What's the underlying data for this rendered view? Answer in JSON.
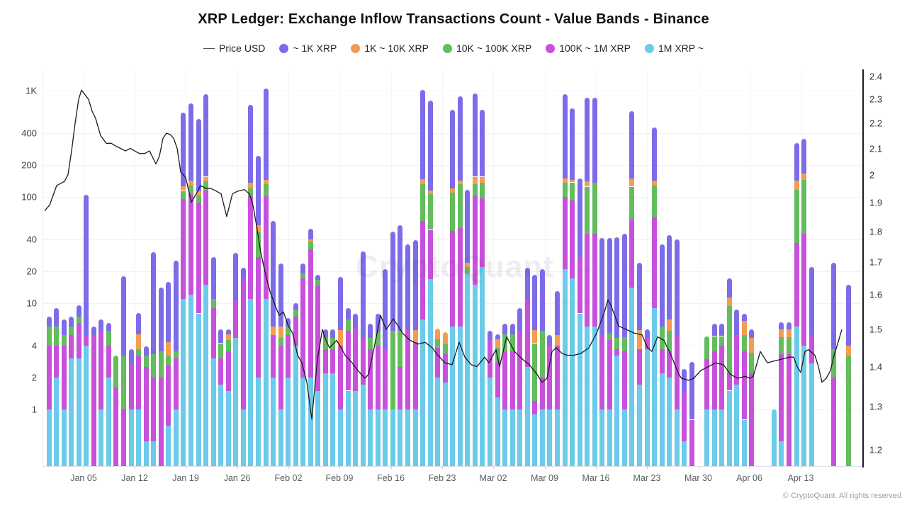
{
  "title": "XRP Ledger: Exchange Inflow Transactions Count - Value Bands - Binance",
  "watermark": "CryptoQuant",
  "footer": "© CryptoQuant. All rights reserved",
  "legend": {
    "price_label": "Price USD",
    "items": [
      {
        "label": "~ 1K XRP",
        "color": "#7d6ce9",
        "band": "purple"
      },
      {
        "label": "1K ~ 10K XRP",
        "color": "#f29a52",
        "band": "orange"
      },
      {
        "label": "10K ~ 100K XRP",
        "color": "#63bc5d",
        "band": "green"
      },
      {
        "label": "100K ~ 1M XRP",
        "color": "#c751da",
        "band": "magenta"
      },
      {
        "label": "1M XRP ~",
        "color": "#6bcbe8",
        "band": "cyan"
      }
    ]
  },
  "colors": {
    "purple": "#7d6ce9",
    "orange": "#f39d52",
    "green": "#63bc5d",
    "magenta": "#c751da",
    "cyan": "#6bcbe8",
    "price_line": "#1a1a1f",
    "grid": "#f1f1f6",
    "right_axis": "#1c1c22"
  },
  "chart_data": {
    "type": "bar",
    "stacked": true,
    "log_left_axis": true,
    "log_right_axis": true,
    "band_order_bottom_to_top": [
      "1M XRP ~",
      "100K ~ 1M XRP",
      "10K ~ 100K XRP",
      "1K ~ 10K XRP",
      "~ 1K XRP"
    ],
    "y_left_ticks": [
      1,
      2,
      4,
      10,
      20,
      40,
      100,
      200,
      400,
      1000
    ],
    "y_left_tick_labels": [
      "1",
      "2",
      "4",
      "10",
      "20",
      "40",
      "100",
      "200",
      "400",
      "1K"
    ],
    "y_right_ticks": [
      2.4,
      2.3,
      2.2,
      2.1,
      2,
      1.9,
      1.8,
      1.7,
      1.6,
      1.5,
      1.4,
      1.3,
      1.2
    ],
    "y_right_tick_labels": [
      "2.4",
      "2.3",
      "2.2",
      "2.1",
      "2",
      "1.9",
      "1.8",
      "1.7",
      "1.6",
      "1.5",
      "1.4",
      "1.3",
      "1.2"
    ],
    "x_ticks": [
      {
        "label": "Jan 05",
        "x": 118
      },
      {
        "label": "Jan 12",
        "x": 190
      },
      {
        "label": "Jan 19",
        "x": 262
      },
      {
        "label": "Jan 26",
        "x": 334.5
      },
      {
        "label": "Feb 02",
        "x": 407
      },
      {
        "label": "Feb 09",
        "x": 479
      },
      {
        "label": "Feb 16",
        "x": 551.5
      },
      {
        "label": "Feb 23",
        "x": 624
      },
      {
        "label": "Mar 02",
        "x": 696
      },
      {
        "label": "Mar 09",
        "x": 768.5
      },
      {
        "label": "Mar 16",
        "x": 841
      },
      {
        "label": "Mar 23",
        "x": 913
      },
      {
        "label": "Mar 30",
        "x": 985.5
      },
      {
        "label": "Apr 06",
        "x": 1057.5
      },
      {
        "label": "Apr 13",
        "x": 1130
      }
    ],
    "bars_note": "daily stacked counts [1M~, 100K-1M, 10K-100K, 1K-10K, ~1K], first bar = Jan 01",
    "bars": [
      [
        1,
        3,
        2,
        0,
        1.5
      ],
      [
        2,
        2,
        2,
        0,
        3
      ],
      [
        1,
        3,
        1,
        0,
        2
      ],
      [
        3,
        2,
        1,
        0,
        1.5
      ],
      [
        3,
        3.5,
        1,
        0,
        2
      ],
      [
        4,
        1,
        0,
        0,
        100
      ],
      [
        0,
        5,
        0,
        0,
        1
      ],
      [
        1,
        4.5,
        0,
        0,
        1.5
      ],
      [
        2,
        2,
        1.5,
        0,
        1
      ],
      [
        0,
        1.6,
        1.6,
        0,
        0
      ],
      [
        0,
        1,
        2.2,
        0,
        14.8
      ],
      [
        1,
        1.7,
        0,
        0,
        1
      ],
      [
        1,
        2.2,
        0.5,
        1.4,
        3
      ],
      [
        0.5,
        2,
        0.7,
        0,
        0.7
      ],
      [
        0.5,
        1.5,
        1.3,
        0,
        26.7
      ],
      [
        0,
        2,
        1.5,
        0,
        10.5
      ],
      [
        0.7,
        1.9,
        0.6,
        1.1,
        11.5
      ],
      [
        1,
        2,
        0.5,
        0,
        21.5
      ],
      [
        11,
        85,
        18,
        12,
        494
      ],
      [
        12,
        95,
        20,
        15,
        618
      ],
      [
        8,
        80,
        15,
        10,
        432
      ],
      [
        15,
        100,
        25,
        15,
        775
      ],
      [
        3,
        6,
        2,
        0,
        16
      ],
      [
        1.7,
        1.3,
        1.2,
        0,
        1.5
      ],
      [
        1.5,
        2,
        1,
        0.6,
        0.6
      ],
      [
        4.7,
        6,
        0,
        0,
        19
      ],
      [
        1,
        16,
        0,
        0,
        4.5
      ],
      [
        11,
        90,
        20,
        15,
        604
      ],
      [
        2,
        25,
        20,
        7,
        191
      ],
      [
        11,
        90,
        30,
        14,
        900
      ],
      [
        2,
        3,
        0,
        1,
        53
      ],
      [
        1,
        3,
        0.7,
        1.3,
        17.7
      ],
      [
        2,
        3,
        1,
        0,
        1.3
      ],
      [
        4,
        3.5,
        1.2,
        0,
        1.3
      ],
      [
        2,
        15,
        2,
        0,
        4.7
      ],
      [
        2,
        30,
        6,
        2,
        10
      ],
      [
        1.5,
        13,
        2,
        0,
        2
      ],
      [
        2.2,
        1.5,
        1,
        0,
        1
      ],
      [
        2.2,
        1.5,
        1,
        0,
        1
      ],
      [
        1,
        3,
        0,
        1.6,
        12
      ],
      [
        1.5,
        4,
        1.5,
        0,
        2
      ],
      [
        1.5,
        4.5,
        0,
        0,
        2
      ],
      [
        1.7,
        3,
        0,
        0,
        26
      ],
      [
        1,
        2.7,
        1,
        0,
        1.7
      ],
      [
        1,
        3,
        1.3,
        0,
        2.7
      ],
      [
        1,
        2.7,
        0,
        0,
        17.3
      ],
      [
        1,
        0,
        4.5,
        0,
        41.5
      ],
      [
        1,
        1.5,
        3,
        0,
        48.5
      ],
      [
        1,
        4.6,
        0,
        0,
        30.4
      ],
      [
        1,
        3.3,
        0,
        1.3,
        33.4
      ],
      [
        7,
        52,
        72,
        15,
        869
      ],
      [
        17,
        32,
        58,
        8,
        695
      ],
      [
        2,
        1.8,
        0.8,
        1.2,
        0
      ],
      [
        1.8,
        1.5,
        0.8,
        1.2,
        0
      ],
      [
        6,
        42,
        62,
        10,
        540
      ],
      [
        6,
        45,
        80,
        12,
        737
      ],
      [
        19,
        0,
        3,
        2,
        93
      ],
      [
        15,
        88,
        29,
        23,
        780
      ],
      [
        22,
        75,
        40,
        18,
        505
      ],
      [
        2,
        2.5,
        0,
        0,
        1
      ],
      [
        1.3,
        1.5,
        1,
        0.8,
        0.5
      ],
      [
        1,
        2.5,
        1.6,
        0,
        1.3
      ],
      [
        1,
        2.5,
        1.6,
        0,
        1.3
      ],
      [
        1,
        4.5,
        0,
        0,
        3.5
      ],
      [
        2.5,
        8.5,
        0,
        0,
        10.5
      ],
      [
        0.9,
        0.3,
        3,
        1.4,
        12.9
      ],
      [
        1,
        1,
        3.5,
        0,
        15.5
      ],
      [
        1,
        3,
        0,
        0,
        1
      ],
      [
        1,
        3,
        0,
        1,
        8
      ],
      [
        21,
        79,
        35,
        15,
        775
      ],
      [
        17,
        75,
        45,
        8,
        535
      ],
      [
        8,
        19,
        0,
        0,
        123
      ],
      [
        6,
        39,
        80,
        15,
        720
      ],
      [
        6,
        39,
        90,
        0,
        725
      ],
      [
        1,
        4,
        0,
        0,
        36
      ],
      [
        1,
        3.5,
        0.7,
        0,
        36
      ],
      [
        3.2,
        0.5,
        1,
        0,
        37.3
      ],
      [
        1,
        2.5,
        1.3,
        0,
        40.2
      ],
      [
        14,
        47,
        64,
        25,
        490
      ],
      [
        1.7,
        2,
        0,
        1.9,
        18.4
      ],
      [
        3.7,
        1,
        0,
        0,
        1
      ],
      [
        9,
        55,
        63,
        15,
        308
      ],
      [
        2.2,
        1.5,
        2.3,
        0,
        30
      ],
      [
        2,
        1.5,
        2,
        1.5,
        37
      ],
      [
        1,
        4,
        0,
        0,
        35
      ],
      [
        0.5,
        1,
        0,
        0,
        0.9
      ],
      [
        0,
        0.8,
        0,
        0,
        2
      ],
      [
        0,
        0,
        0,
        0,
        0
      ],
      [
        1,
        2,
        1.9,
        0,
        0
      ],
      [
        1,
        2.5,
        1.4,
        0,
        1.5
      ],
      [
        1,
        3,
        0.9,
        0,
        1.5
      ],
      [
        1.5,
        0.7,
        7.2,
        1.9,
        5.7
      ],
      [
        1.7,
        3.3,
        0,
        0,
        3.7
      ],
      [
        0.8,
        2.7,
        1.5,
        1.8,
        1.2
      ],
      [
        0,
        2.2,
        1.2,
        1.3,
        1
      ],
      [
        0,
        0,
        0,
        0,
        0
      ],
      [
        0,
        0,
        0,
        0,
        0
      ],
      [
        1,
        0,
        0,
        0,
        0
      ],
      [
        0.5,
        2.8,
        1.5,
        0.9,
        0.9
      ],
      [
        0,
        3.3,
        1.5,
        0.9,
        0.9
      ],
      [
        6,
        31,
        80,
        25,
        178
      ],
      [
        4,
        41,
        100,
        20,
        190
      ],
      [
        2.7,
        2.3,
        0,
        0,
        17
      ],
      [
        0,
        0,
        0,
        0,
        0
      ],
      [
        0,
        0,
        0,
        0,
        0
      ],
      [
        0,
        2,
        1.7,
        0,
        20.3
      ],
      [
        0,
        0,
        0,
        0,
        0
      ],
      [
        0,
        0,
        3.2,
        0.8,
        11
      ]
    ],
    "price_usd": [
      [
        63,
        1.87
      ],
      [
        70,
        1.89
      ],
      [
        80,
        1.96
      ],
      [
        91,
        1.975
      ],
      [
        96,
        2.0
      ],
      [
        101,
        2.09
      ],
      [
        106,
        2.2
      ],
      [
        111,
        2.3
      ],
      [
        115,
        2.34
      ],
      [
        120,
        2.32
      ],
      [
        125,
        2.3
      ],
      [
        130,
        2.25
      ],
      [
        135,
        2.22
      ],
      [
        142,
        2.15
      ],
      [
        150,
        2.12
      ],
      [
        157,
        2.12
      ],
      [
        163,
        2.11
      ],
      [
        170,
        2.1
      ],
      [
        177,
        2.09
      ],
      [
        184,
        2.1
      ],
      [
        190,
        2.09
      ],
      [
        197,
        2.08
      ],
      [
        204,
        2.08
      ],
      [
        211,
        2.09
      ],
      [
        220,
        2.04
      ],
      [
        225,
        2.07
      ],
      [
        230,
        2.14
      ],
      [
        235,
        2.16
      ],
      [
        240,
        2.155
      ],
      [
        245,
        2.14
      ],
      [
        250,
        2.1
      ],
      [
        255,
        2.01
      ],
      [
        262,
        1.99
      ],
      [
        270,
        1.9
      ],
      [
        277,
        1.93
      ],
      [
        283,
        1.96
      ],
      [
        290,
        1.95
      ],
      [
        297,
        1.95
      ],
      [
        305,
        1.94
      ],
      [
        312,
        1.93
      ],
      [
        320,
        1.85
      ],
      [
        328,
        1.93
      ],
      [
        336,
        1.94
      ],
      [
        345,
        1.945
      ],
      [
        352,
        1.93
      ],
      [
        357,
        1.89
      ],
      [
        362,
        1.82
      ],
      [
        368,
        1.73
      ],
      [
        375,
        1.66
      ],
      [
        381,
        1.61
      ],
      [
        388,
        1.57
      ],
      [
        394,
        1.54
      ],
      [
        400,
        1.55
      ],
      [
        407,
        1.51
      ],
      [
        413,
        1.49
      ],
      [
        420,
        1.43
      ],
      [
        426,
        1.41
      ],
      [
        433,
        1.36
      ],
      [
        440,
        1.27
      ],
      [
        448,
        1.42
      ],
      [
        455,
        1.5
      ],
      [
        460,
        1.47
      ],
      [
        465,
        1.45
      ],
      [
        470,
        1.46
      ],
      [
        475,
        1.47
      ],
      [
        480,
        1.455
      ],
      [
        487,
        1.43
      ],
      [
        497,
        1.41
      ],
      [
        505,
        1.39
      ],
      [
        515,
        1.37
      ],
      [
        520,
        1.38
      ],
      [
        528,
        1.45
      ],
      [
        537,
        1.54
      ],
      [
        545,
        1.5
      ],
      [
        555,
        1.53
      ],
      [
        562,
        1.51
      ],
      [
        568,
        1.49
      ],
      [
        579,
        1.47
      ],
      [
        590,
        1.46
      ],
      [
        600,
        1.465
      ],
      [
        610,
        1.45
      ],
      [
        618,
        1.43
      ],
      [
        628,
        1.41
      ],
      [
        638,
        1.405
      ],
      [
        648,
        1.465
      ],
      [
        656,
        1.425
      ],
      [
        665,
        1.405
      ],
      [
        673,
        1.4
      ],
      [
        684,
        1.425
      ],
      [
        690,
        1.41
      ],
      [
        700,
        1.445
      ],
      [
        705,
        1.4
      ],
      [
        715,
        1.48
      ],
      [
        726,
        1.44
      ],
      [
        737,
        1.42
      ],
      [
        747,
        1.405
      ],
      [
        758,
        1.38
      ],
      [
        765,
        1.36
      ],
      [
        772,
        1.37
      ],
      [
        779,
        1.44
      ],
      [
        785,
        1.45
      ],
      [
        793,
        1.435
      ],
      [
        800,
        1.43
      ],
      [
        810,
        1.43
      ],
      [
        820,
        1.435
      ],
      [
        831,
        1.45
      ],
      [
        842,
        1.49
      ],
      [
        853,
        1.55
      ],
      [
        858,
        1.585
      ],
      [
        862,
        1.57
      ],
      [
        873,
        1.51
      ],
      [
        884,
        1.5
      ],
      [
        895,
        1.49
      ],
      [
        906,
        1.485
      ],
      [
        914,
        1.45
      ],
      [
        920,
        1.44
      ],
      [
        928,
        1.48
      ],
      [
        937,
        1.47
      ],
      [
        947,
        1.43
      ],
      [
        958,
        1.38
      ],
      [
        962,
        1.37
      ],
      [
        972,
        1.365
      ],
      [
        979,
        1.37
      ],
      [
        989,
        1.39
      ],
      [
        1000,
        1.4
      ],
      [
        1010,
        1.41
      ],
      [
        1021,
        1.405
      ],
      [
        1031,
        1.38
      ],
      [
        1041,
        1.37
      ],
      [
        1052,
        1.375
      ],
      [
        1058,
        1.37
      ],
      [
        1063,
        1.375
      ],
      [
        1073,
        1.44
      ],
      [
        1083,
        1.41
      ],
      [
        1093,
        1.415
      ],
      [
        1104,
        1.42
      ],
      [
        1114,
        1.425
      ],
      [
        1120,
        1.425
      ],
      [
        1125,
        1.4
      ],
      [
        1130,
        1.385
      ],
      [
        1136,
        1.44
      ],
      [
        1141,
        1.445
      ],
      [
        1150,
        1.43
      ],
      [
        1155,
        1.4
      ],
      [
        1160,
        1.36
      ],
      [
        1166,
        1.37
      ],
      [
        1172,
        1.39
      ],
      [
        1177,
        1.43
      ],
      [
        1182,
        1.46
      ],
      [
        1188,
        1.5
      ]
    ]
  }
}
